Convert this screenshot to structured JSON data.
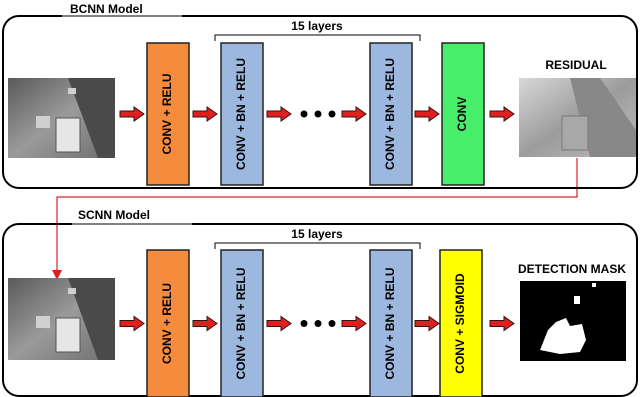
{
  "panels": [
    {
      "title": "BCNN Model",
      "bracket_label": "15 layers",
      "blocks": [
        "CONV + RELU",
        "CONV + BN + RELU",
        "CONV + BN + RELU",
        "CONV"
      ],
      "output_label": "RESIDUAL"
    },
    {
      "title": "SCNN Model",
      "bracket_label": "15 layers",
      "blocks": [
        "CONV + RELU",
        "CONV + BN + RELU",
        "CONV + BN + RELU",
        "CONV + SIGMOID"
      ],
      "output_label": "DETECTION MASK"
    }
  ]
}
